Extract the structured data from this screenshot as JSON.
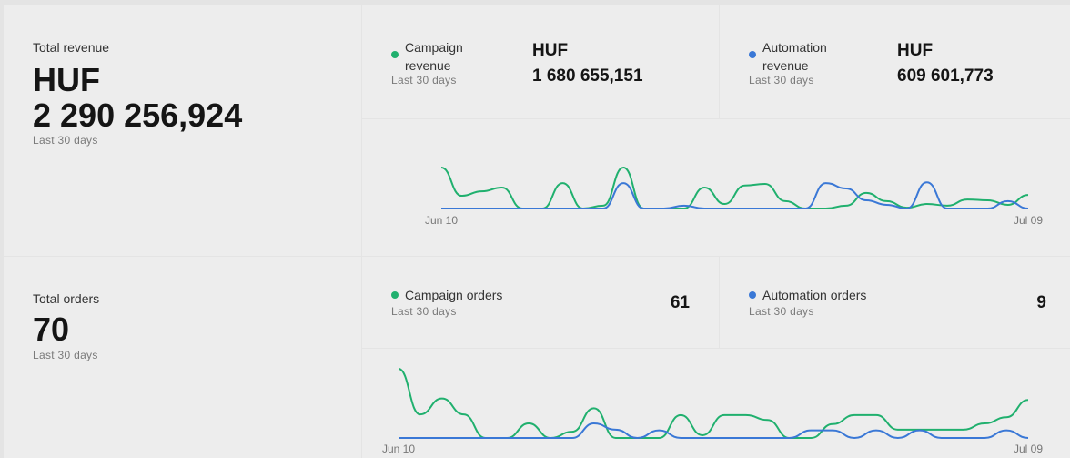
{
  "revenue": {
    "total": {
      "label": "Total revenue",
      "currency": "HUF",
      "value": "2 290 256,924",
      "period": "Last 30 days"
    },
    "campaign": {
      "currency": "HUF",
      "value": "1 680 655,151",
      "period": "Last 30 days"
    },
    "automation": {
      "currency": "HUF",
      "value": "609 601,773",
      "period": "Last 30 days"
    }
  },
  "orders": {
    "total": {
      "label": "Total orders",
      "value": 70,
      "period": "Last 30 days"
    },
    "campaign": {
      "value": 61,
      "period": "Last 30 days"
    },
    "automation": {
      "value": 9,
      "period": "Last 30 days"
    }
  },
  "chart_data": [
    {
      "type": "line",
      "categories": [
        "Jun 10",
        null,
        null,
        null,
        null,
        null,
        null,
        null,
        null,
        null,
        null,
        null,
        null,
        null,
        null,
        null,
        null,
        null,
        null,
        null,
        null,
        null,
        null,
        null,
        null,
        null,
        null,
        null,
        null,
        "Jul 09"
      ],
      "ylim": [
        0,
        100
      ],
      "series": [
        {
          "name": "Campaign revenue",
          "color": "#20b06e",
          "values": [
            100,
            31,
            42,
            51,
            0,
            0,
            62,
            0,
            7,
            100,
            0,
            0,
            0,
            51,
            11,
            56,
            60,
            18,
            0,
            0,
            7,
            38,
            18,
            2,
            11,
            7,
            22,
            20,
            9,
            33
          ]
        },
        {
          "name": "Automation revenue",
          "color": "#3a78d6",
          "values": [
            0,
            0,
            0,
            0,
            0,
            0,
            0,
            0,
            0,
            62,
            0,
            0,
            7,
            0,
            0,
            0,
            0,
            0,
            0,
            62,
            49,
            20,
            9,
            0,
            64,
            0,
            0,
            0,
            18,
            0
          ]
        }
      ]
    },
    {
      "type": "line",
      "categories": [
        "Jun 10",
        null,
        null,
        null,
        null,
        null,
        null,
        null,
        null,
        null,
        null,
        null,
        null,
        null,
        null,
        null,
        null,
        null,
        null,
        null,
        null,
        null,
        null,
        null,
        null,
        null,
        null,
        null,
        null,
        "Jul 09"
      ],
      "ylim": [
        0,
        100
      ],
      "series": [
        {
          "name": "Campaign orders",
          "color": "#20b06e",
          "values": [
            100,
            34,
            57,
            34,
            0,
            0,
            21,
            0,
            9,
            43,
            0,
            0,
            0,
            33,
            4,
            33,
            33,
            26,
            0,
            0,
            20,
            33,
            33,
            12,
            12,
            12,
            12,
            21,
            30,
            55
          ]
        },
        {
          "name": "Automation orders",
          "color": "#3a78d6",
          "values": [
            0,
            0,
            0,
            0,
            0,
            0,
            0,
            0,
            0,
            21,
            12,
            0,
            11,
            0,
            0,
            0,
            0,
            0,
            0,
            11,
            11,
            0,
            11,
            0,
            11,
            0,
            0,
            0,
            11,
            0
          ]
        }
      ]
    }
  ]
}
